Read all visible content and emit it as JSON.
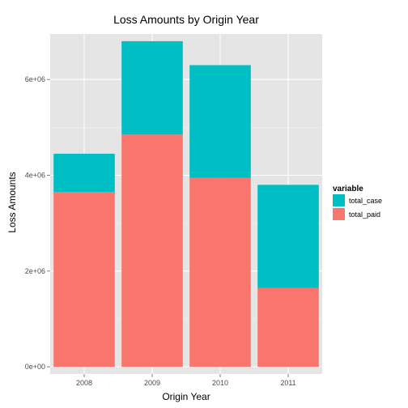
{
  "chart_data": {
    "type": "bar",
    "stacked": true,
    "title": "Loss Amounts by Origin Year",
    "xlabel": "Origin Year",
    "ylabel": "Loss Amounts",
    "categories": [
      "2008",
      "2009",
      "2010",
      "2011"
    ],
    "series": [
      {
        "name": "total_paid",
        "color": "#F8766D",
        "values": [
          3650000,
          4850000,
          3950000,
          1650000
        ]
      },
      {
        "name": "total_case",
        "color": "#00BFC4",
        "values": [
          800000,
          1950000,
          2350000,
          2150000
        ]
      }
    ],
    "ylim": [
      -150000,
      6950000
    ],
    "yticks": [
      0,
      2000000,
      4000000,
      6000000
    ],
    "ytick_labels": [
      "0e+00",
      "2e+06",
      "4e+06",
      "6e+06"
    ],
    "grid": true,
    "legend": {
      "title": "variable",
      "placement": "right",
      "entries": [
        {
          "label": "total_case",
          "color": "#00BFC4"
        },
        {
          "label": "total_paid",
          "color": "#F8766D"
        }
      ]
    },
    "panel_background": "#E5E5E5",
    "grid_major_color": "#FFFFFF",
    "grid_minor_color": "#F2F2F2"
  }
}
